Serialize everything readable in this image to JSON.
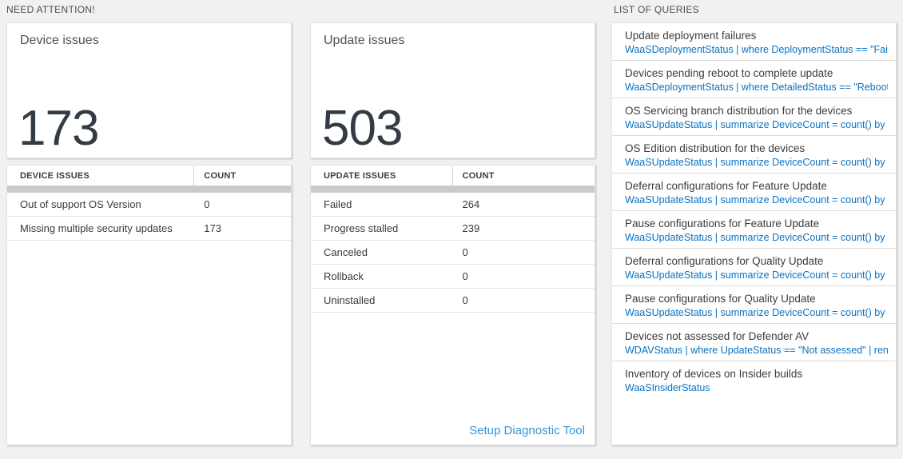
{
  "colors": {
    "page_background": "#f1f1f2",
    "query_blue": "#0b72c0",
    "link_blue": "#3795d5",
    "big_number": "#333b44",
    "divider_bar": "#c8cbce"
  },
  "section_need_attention": {
    "title": "NEED ATTENTION!",
    "cards": [
      {
        "title": "Device issues",
        "count": "173",
        "table_headers": [
          "DEVICE ISSUES",
          "COUNT"
        ],
        "rows": [
          [
            "Out of support OS Version",
            "0"
          ],
          [
            "Missing multiple security updates",
            "173"
          ]
        ]
      },
      {
        "title": "Update issues",
        "count": "503",
        "table_headers": [
          "UPDATE ISSUES",
          "COUNT"
        ],
        "rows": [
          [
            "Failed",
            "264"
          ],
          [
            "Progress stalled",
            "239"
          ],
          [
            "Canceled",
            "0"
          ],
          [
            "Rollback",
            "0"
          ],
          [
            "Uninstalled",
            "0"
          ]
        ],
        "footer_link": "Setup Diagnostic Tool"
      }
    ]
  },
  "section_queries": {
    "title": "LIST OF QUERIES",
    "items": [
      {
        "title": "Update deployment failures",
        "query": "WaaSDeploymentStatus | where DeploymentStatus == \"Failed\" |..."
      },
      {
        "title": "Devices pending reboot to complete update",
        "query": "WaaSDeploymentStatus | where DetailedStatus == \"Reboot pend..."
      },
      {
        "title": "OS Servicing branch distribution for the devices",
        "query": "WaaSUpdateStatus | summarize DeviceCount = count() by OSSer..."
      },
      {
        "title": "OS Edition distribution for the devices",
        "query": "WaaSUpdateStatus | summarize DeviceCount = count() by OSEdit..."
      },
      {
        "title": "Deferral configurations for Feature Update",
        "query": "WaaSUpdateStatus | summarize DeviceCount = count() by Featur..."
      },
      {
        "title": "Pause configurations for Feature Update",
        "query": "WaaSUpdateStatus | summarize DeviceCount = count() by Featur..."
      },
      {
        "title": "Deferral configurations for Quality Update",
        "query": "WaaSUpdateStatus | summarize DeviceCount = count() by Qualit..."
      },
      {
        "title": "Pause configurations for Quality Update",
        "query": "WaaSUpdateStatus | summarize DeviceCount = count() by Qualit..."
      },
      {
        "title": "Devices not assessed for Defender AV",
        "query": "WDAVStatus | where UpdateStatus == \"Not assessed\" | render ta..."
      },
      {
        "title": "Inventory of devices on Insider builds",
        "query": "WaaSInsiderStatus"
      }
    ]
  }
}
